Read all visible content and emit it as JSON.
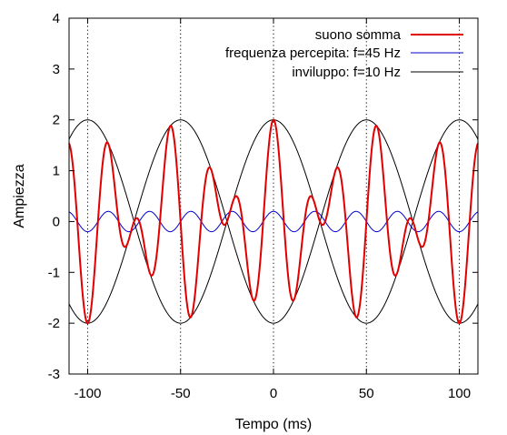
{
  "chart_data": {
    "type": "line",
    "xlabel": "Tempo (ms)",
    "ylabel": "Ampiezza",
    "xlim": [
      -110,
      110
    ],
    "ylim": [
      -3,
      4
    ],
    "x_ticks": [
      -100,
      -50,
      0,
      50,
      100
    ],
    "x_tick_labels": [
      "-100",
      "-50",
      "0",
      "50",
      "100"
    ],
    "y_ticks": [
      -3,
      -2,
      -1,
      0,
      1,
      2,
      3,
      4
    ],
    "y_tick_labels": [
      "-3",
      "-2",
      "-1",
      "0",
      "1",
      "2",
      "3",
      "4"
    ],
    "vertical_guides_x": [
      -100,
      -50,
      0,
      50,
      100
    ],
    "legend_position": "top-right",
    "series": [
      {
        "name": "suono somma",
        "color": "#e00000",
        "formula": "2*cos(2*pi*10*t)*cos(2*pi*45*t)",
        "envelope_peak": 2,
        "carrier_frequency_hz": 45,
        "envelope_frequency_hz": 10
      },
      {
        "name": "frequenza percepita: f=45 Hz",
        "color": "#0000cc",
        "formula": "0.2*cos(2*pi*45*t)",
        "amplitude": 0.2,
        "frequency_hz": 45
      },
      {
        "name": "inviluppo: f=10 Hz",
        "color": "#000000",
        "formula": "+/-2*cos(2*pi*10*t)",
        "amplitude": 2,
        "frequency_hz": 10
      }
    ]
  }
}
